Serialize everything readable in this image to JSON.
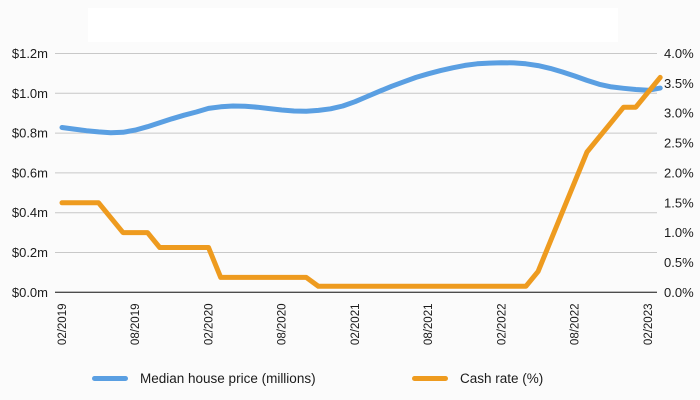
{
  "page": {
    "background_color": "#fbfbfb",
    "text_color": "#1b1b1b",
    "gridline_color": "#c8c8c8",
    "axis_line_color": "#4d4d4d"
  },
  "legend": {
    "items": [
      {
        "label": "Median house price (millions)",
        "color": "#5a9fe2",
        "swatch": "blue-line-swatch"
      },
      {
        "label": "Cash rate (%)",
        "color": "#ee9b1f",
        "swatch": "orange-line-swatch"
      }
    ]
  },
  "chart_data": {
    "type": "line",
    "title": "",
    "xlabel": "",
    "grid": true,
    "legend_position": "bottom",
    "x_tick_labels": [
      "02/2019",
      "08/2019",
      "02/2020",
      "08/2020",
      "02/2021",
      "08/2021",
      "02/2022",
      "08/2022",
      "02/2023"
    ],
    "x": [
      "02/2019",
      "03/2019",
      "04/2019",
      "05/2019",
      "06/2019",
      "07/2019",
      "08/2019",
      "09/2019",
      "10/2019",
      "11/2019",
      "12/2019",
      "01/2020",
      "02/2020",
      "03/2020",
      "04/2020",
      "05/2020",
      "06/2020",
      "07/2020",
      "08/2020",
      "09/2020",
      "10/2020",
      "11/2020",
      "12/2020",
      "01/2021",
      "02/2021",
      "03/2021",
      "04/2021",
      "05/2021",
      "06/2021",
      "07/2021",
      "08/2021",
      "09/2021",
      "10/2021",
      "11/2021",
      "12/2021",
      "01/2022",
      "02/2022",
      "03/2022",
      "04/2022",
      "05/2022",
      "06/2022",
      "07/2022",
      "08/2022",
      "09/2022",
      "10/2022",
      "11/2022",
      "12/2022",
      "01/2023",
      "02/2023",
      "03/2023"
    ],
    "left_axis": {
      "label": "Median house price (millions)",
      "tick_labels": [
        "$1.2m",
        "$1.0m",
        "$0.8m",
        "$0.6m",
        "$0.4m",
        "$0.2m",
        "$0.0m"
      ],
      "range": [
        0,
        1.2
      ]
    },
    "right_axis": {
      "label": "Cash rate (%)",
      "tick_labels": [
        "4.0%",
        "3.5%",
        "3.0%",
        "2.5%",
        "2.0%",
        "1.5%",
        "1.0%",
        "0.5%",
        "0.0%"
      ],
      "range": [
        0,
        4.0
      ]
    },
    "series": [
      {
        "name": "Median house price (millions)",
        "axis": "left",
        "color": "#5a9fe2",
        "values": [
          0.828,
          0.82,
          0.812,
          0.806,
          0.802,
          0.804,
          0.815,
          0.832,
          0.852,
          0.872,
          0.89,
          0.906,
          0.924,
          0.932,
          0.936,
          0.935,
          0.93,
          0.923,
          0.916,
          0.911,
          0.91,
          0.914,
          0.922,
          0.936,
          0.958,
          0.984,
          1.01,
          1.035,
          1.058,
          1.08,
          1.098,
          1.114,
          1.128,
          1.14,
          1.148,
          1.152,
          1.154,
          1.153,
          1.148,
          1.139,
          1.125,
          1.107,
          1.087,
          1.065,
          1.045,
          1.032,
          1.025,
          1.019,
          1.015,
          1.026
        ]
      },
      {
        "name": "Cash rate (%)",
        "axis": "right",
        "color": "#ee9b1f",
        "values": [
          1.5,
          1.5,
          1.5,
          1.5,
          1.25,
          1.0,
          1.0,
          1.0,
          0.75,
          0.75,
          0.75,
          0.75,
          0.75,
          0.25,
          0.25,
          0.25,
          0.25,
          0.25,
          0.25,
          0.25,
          0.25,
          0.1,
          0.1,
          0.1,
          0.1,
          0.1,
          0.1,
          0.1,
          0.1,
          0.1,
          0.1,
          0.1,
          0.1,
          0.1,
          0.1,
          0.1,
          0.1,
          0.1,
          0.1,
          0.35,
          0.85,
          1.35,
          1.85,
          2.35,
          2.6,
          2.85,
          3.1,
          3.1,
          3.35,
          3.6
        ]
      }
    ]
  }
}
